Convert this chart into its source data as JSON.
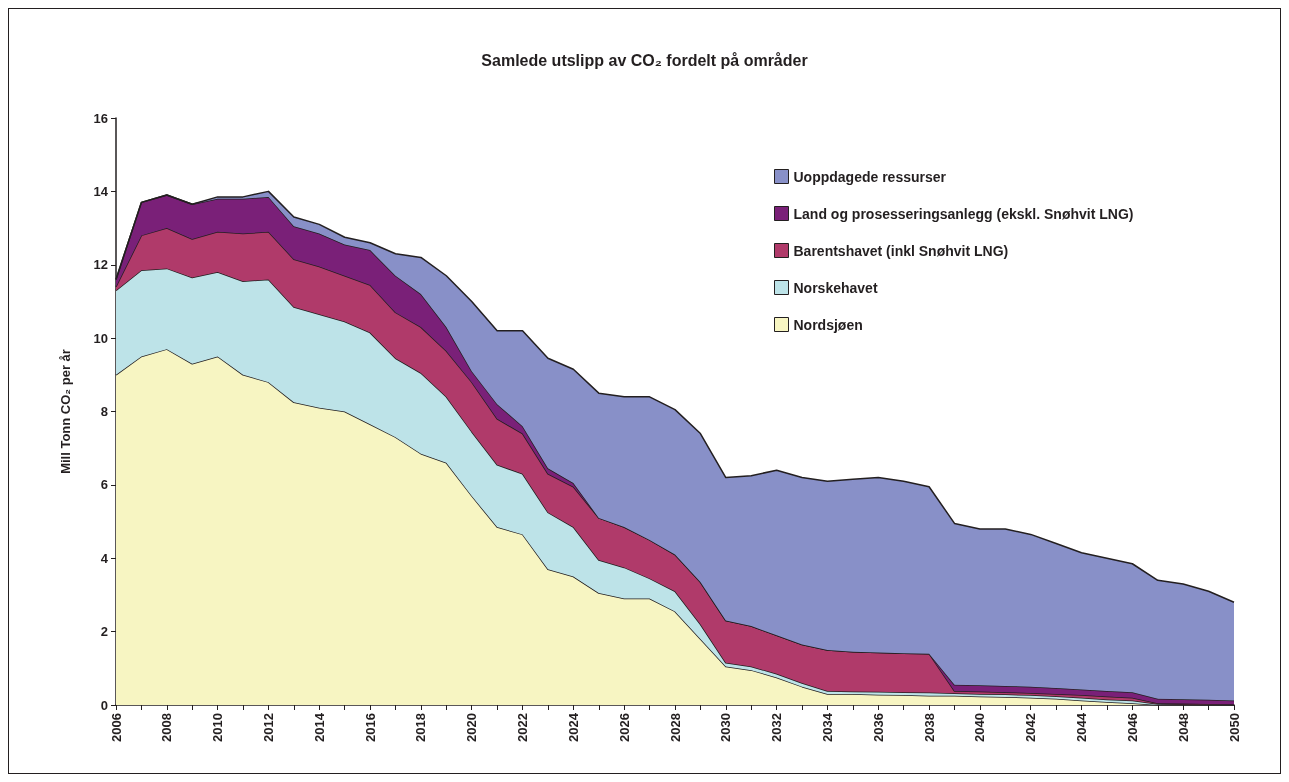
{
  "chart_data": {
    "type": "area",
    "stacked": true,
    "title": "Samlede utslipp av CO₂ fordelt på områder",
    "ylabel": "Mill Tonn CO₂ per år",
    "x": [
      2006,
      2007,
      2008,
      2009,
      2010,
      2011,
      2012,
      2013,
      2014,
      2015,
      2016,
      2017,
      2018,
      2019,
      2020,
      2021,
      2022,
      2023,
      2024,
      2025,
      2026,
      2027,
      2028,
      2029,
      2030,
      2031,
      2032,
      2033,
      2034,
      2035,
      2036,
      2037,
      2038,
      2039,
      2040,
      2041,
      2042,
      2043,
      2044,
      2045,
      2046,
      2047,
      2048,
      2049,
      2050
    ],
    "xlim": [
      2006,
      2050
    ],
    "xticks": [
      2006,
      {
        "value": 2007,
        "label": null
      },
      2008,
      {
        "value": 2009,
        "label": null
      },
      2010,
      {
        "value": 2011,
        "label": null
      },
      2012,
      {
        "value": 2013,
        "label": null
      },
      2014,
      {
        "value": 2015,
        "label": null
      },
      2016,
      {
        "value": 2017,
        "label": null
      },
      2018,
      {
        "value": 2019,
        "label": null
      },
      2020,
      {
        "value": 2021,
        "label": null
      },
      2022,
      {
        "value": 2023,
        "label": null
      },
      2024,
      {
        "value": 2025,
        "label": null
      },
      2026,
      {
        "value": 2027,
        "label": null
      },
      2028,
      {
        "value": 2029,
        "label": null
      },
      2030,
      {
        "value": 2031,
        "label": null
      },
      2032,
      {
        "value": 2033,
        "label": null
      },
      2034,
      {
        "value": 2035,
        "label": null
      },
      2036,
      {
        "value": 2037,
        "label": null
      },
      2038,
      {
        "value": 2039,
        "label": null
      },
      2040,
      {
        "value": 2041,
        "label": null
      },
      2042,
      {
        "value": 2043,
        "label": null
      },
      2044,
      {
        "value": 2045,
        "label": null
      },
      2046,
      {
        "value": 2047,
        "label": null
      },
      2048,
      {
        "value": 2049,
        "label": null
      },
      2050
    ],
    "ylim": [
      0,
      16
    ],
    "yticks": [
      0,
      2,
      4,
      6,
      8,
      10,
      12,
      14,
      16
    ],
    "grid": false,
    "legend": "top right",
    "series": [
      {
        "name": "Nordsjøen",
        "color": "#f7f5c2",
        "values": [
          9.0,
          9.5,
          9.7,
          9.3,
          9.5,
          9.0,
          8.8,
          8.25,
          8.1,
          8.0,
          7.65,
          7.3,
          6.85,
          6.6,
          5.7,
          4.85,
          4.65,
          3.7,
          3.5,
          3.05,
          2.9,
          2.9,
          2.55,
          1.8,
          1.05,
          0.95,
          0.75,
          0.5,
          0.3,
          0.3,
          0.28,
          0.27,
          0.25,
          0.25,
          0.23,
          0.22,
          0.2,
          0.17,
          0.12,
          0.08,
          0.05,
          0,
          0,
          0,
          0
        ]
      },
      {
        "name": "Norskehavet",
        "color": "#bde3e8",
        "values": [
          2.3,
          2.35,
          2.2,
          2.35,
          2.3,
          2.55,
          2.8,
          2.6,
          2.55,
          2.45,
          2.5,
          2.15,
          2.2,
          1.8,
          1.75,
          1.7,
          1.65,
          1.55,
          1.35,
          0.9,
          0.85,
          0.55,
          0.55,
          0.4,
          0.1,
          0.1,
          0.1,
          0.1,
          0.08,
          0.07,
          0.08,
          0.08,
          0.09,
          0.07,
          0.07,
          0.07,
          0.07,
          0.07,
          0.08,
          0.07,
          0.07,
          0.03,
          0.02,
          0.01,
          0
        ]
      },
      {
        "name": "Barentshavet (inkl Snøhvit LNG)",
        "color": "#b03a6a",
        "values": [
          0.1,
          0.95,
          1.1,
          1.05,
          1.1,
          1.3,
          1.3,
          1.3,
          1.3,
          1.25,
          1.3,
          1.25,
          1.25,
          1.25,
          1.35,
          1.25,
          1.1,
          1.05,
          1.1,
          1.15,
          1.1,
          1.05,
          1.0,
          1.15,
          1.15,
          1.1,
          1.05,
          1.05,
          1.12,
          1.08,
          1.07,
          1.06,
          1.06,
          0.06,
          0.07,
          0.06,
          0.06,
          0.06,
          0.07,
          0.08,
          0.08,
          0.02,
          0.02,
          0.02,
          0.02
        ]
      },
      {
        "name": "Land og prosesseringsanlegg (ekskl. Snøhvit LNG)",
        "color": "#7a2078",
        "values": [
          0.2,
          0.9,
          0.9,
          0.95,
          0.9,
          0.95,
          0.95,
          0.9,
          0.9,
          0.85,
          0.95,
          1.0,
          0.9,
          0.65,
          0.3,
          0.4,
          0.2,
          0.15,
          0.1,
          0,
          0,
          0,
          0,
          0,
          0,
          0,
          0,
          0,
          0,
          0,
          0,
          0,
          0,
          0.17,
          0.17,
          0.17,
          0.17,
          0.16,
          0.15,
          0.15,
          0.15,
          0.12,
          0.12,
          0.11,
          0.1
        ]
      },
      {
        "name": "Uoppdagede ressurser",
        "color": "#8890c8",
        "values": [
          0,
          0,
          0,
          0,
          0.05,
          0.05,
          0.15,
          0.25,
          0.25,
          0.2,
          0.2,
          0.6,
          1.0,
          1.4,
          1.9,
          2.0,
          2.6,
          3.0,
          3.1,
          3.4,
          3.55,
          3.9,
          3.95,
          4.05,
          3.9,
          4.1,
          4.5,
          4.55,
          4.6,
          4.7,
          4.77,
          4.69,
          4.55,
          4.4,
          4.26,
          4.28,
          4.15,
          3.94,
          3.73,
          3.62,
          3.5,
          3.23,
          3.14,
          2.96,
          2.68
        ]
      }
    ]
  }
}
